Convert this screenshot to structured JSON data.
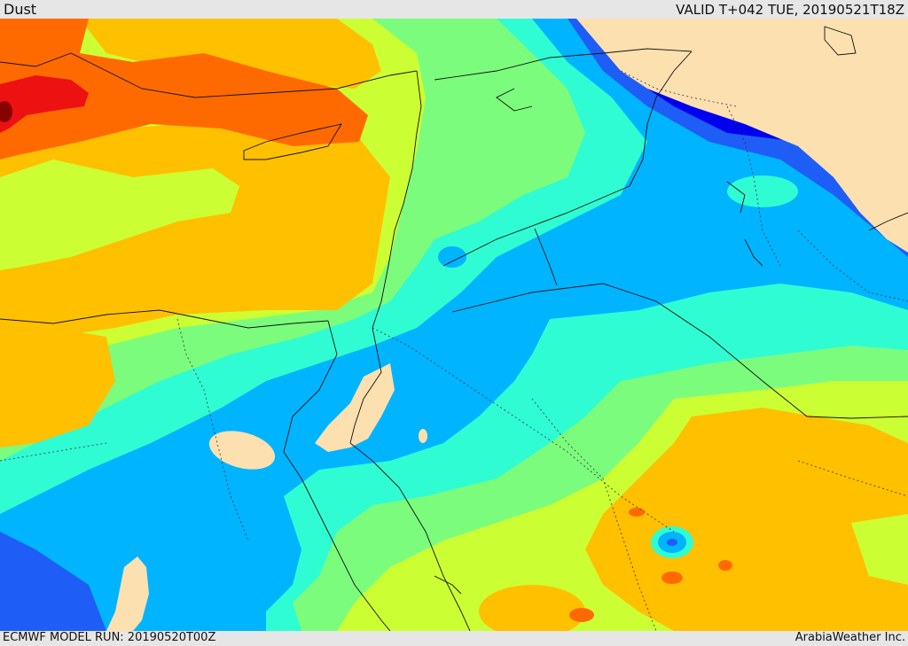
{
  "header": {
    "field_label": "Dust",
    "valid_time": "VALID T+042 TUE, 20190521T18Z"
  },
  "footer": {
    "model_run": "ECMWF MODEL RUN: 20190520T00Z",
    "credit": "ArabiaWeather Inc."
  },
  "colors": {
    "land_no_data": "#fde0b0",
    "dark_blue": "#0000ee",
    "blue": "#1e5ef6",
    "light_blue": "#00b4ff",
    "cyan": "#2ffcd2",
    "light_green": "#7cfc7c",
    "yellow_green": "#ccff33",
    "orange_yellow": "#ffc000",
    "orange": "#ff6a00",
    "red": "#ee1111",
    "dark_red": "#880000",
    "coastline": "#111111"
  }
}
